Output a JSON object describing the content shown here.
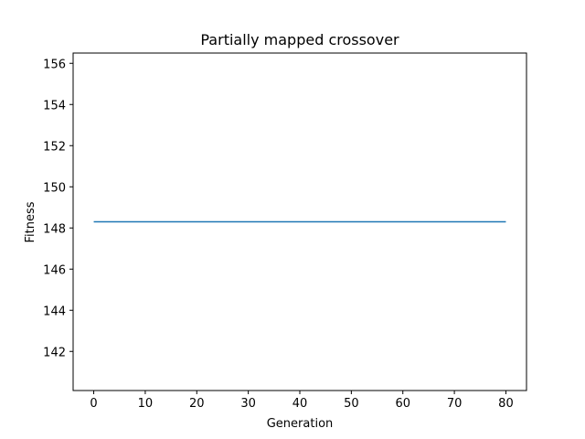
{
  "chart_data": {
    "type": "line",
    "title": "Partially mapped crossover",
    "xlabel": "Generation",
    "ylabel": "Fitness",
    "xlim": [
      -4,
      84
    ],
    "ylim": [
      140.1,
      156.5
    ],
    "xticks": [
      0,
      10,
      20,
      30,
      40,
      50,
      60,
      70,
      80
    ],
    "yticks": [
      142,
      144,
      146,
      148,
      150,
      152,
      154,
      156
    ],
    "grid": false,
    "series": [
      {
        "color": "#1f77b4",
        "x": [
          0,
          10,
          20,
          30,
          40,
          50,
          60,
          70,
          80
        ],
        "y": [
          148.3,
          148.3,
          148.3,
          148.3,
          148.3,
          148.3,
          148.3,
          148.3,
          148.3
        ]
      }
    ]
  }
}
